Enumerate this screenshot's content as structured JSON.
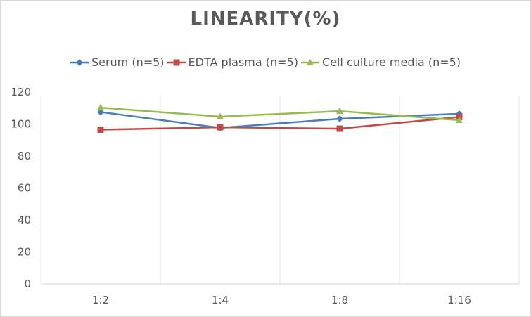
{
  "chart_data": {
    "type": "line",
    "title": "LINEARITY(%)",
    "xlabel": "",
    "ylabel": "",
    "categories": [
      "1:2",
      "1:4",
      "1:8",
      "1:16"
    ],
    "ylim": [
      0,
      120
    ],
    "yticks": [
      "0",
      "20",
      "40",
      "60",
      "80",
      "100",
      "120"
    ],
    "ytick_values": [
      0,
      20,
      40,
      60,
      80,
      100,
      120
    ],
    "grid": "vertical category separators",
    "legend_position": "top",
    "series": [
      {
        "name": "Serum (n=5)",
        "color": "#4a7ebb",
        "marker": "diamond",
        "values": [
          107.5,
          97.6,
          103.3,
          106.4
        ]
      },
      {
        "name": "EDTA plasma (n=5)",
        "color": "#be4b48",
        "marker": "square",
        "values": [
          96.5,
          98.0,
          97.1,
          104.4
        ]
      },
      {
        "name": "Cell culture media (n=5)",
        "color": "#98b954",
        "marker": "triangle",
        "values": [
          110.3,
          104.6,
          108.1,
          102.4
        ]
      }
    ]
  }
}
